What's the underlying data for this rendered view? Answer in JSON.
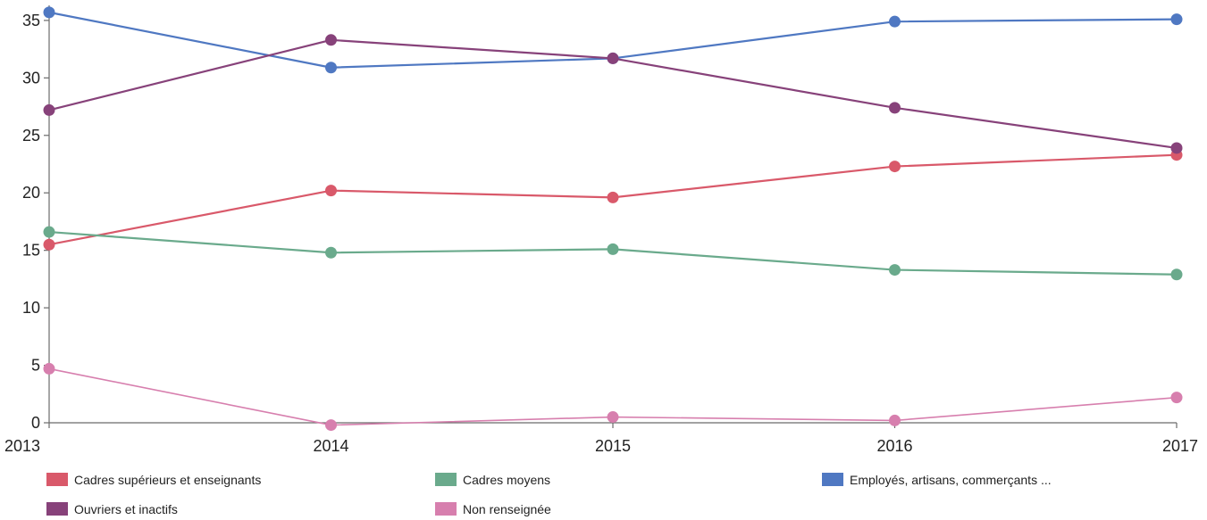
{
  "chart_data": {
    "type": "line",
    "x": [
      "2013",
      "2014",
      "2015",
      "2016",
      "2017"
    ],
    "ylim": [
      0,
      36
    ],
    "y_ticks": [
      0,
      5,
      10,
      15,
      20,
      25,
      30,
      35
    ],
    "grid": false,
    "legend_position": "bottom",
    "series": [
      {
        "name": "Cadres supérieurs et enseignants",
        "color": "#d9596a",
        "values": [
          15.5,
          20.2,
          19.6,
          22.3,
          23.3
        ]
      },
      {
        "name": "Cadres moyens",
        "color": "#6aaa8c",
        "values": [
          16.6,
          14.8,
          15.1,
          13.3,
          12.9
        ]
      },
      {
        "name": "Employés, artisans, commerçants ...",
        "color": "#4f78c2",
        "values": [
          35.7,
          30.9,
          31.7,
          34.9,
          35.1
        ]
      },
      {
        "name": "Ouvriers et inactifs",
        "color": "#87427a",
        "values": [
          27.2,
          33.3,
          31.7,
          27.4,
          23.9
        ]
      },
      {
        "name": "Non renseignée",
        "color": "#d77fae",
        "values": [
          4.7,
          -0.2,
          0.5,
          0.2,
          2.2
        ]
      }
    ]
  }
}
